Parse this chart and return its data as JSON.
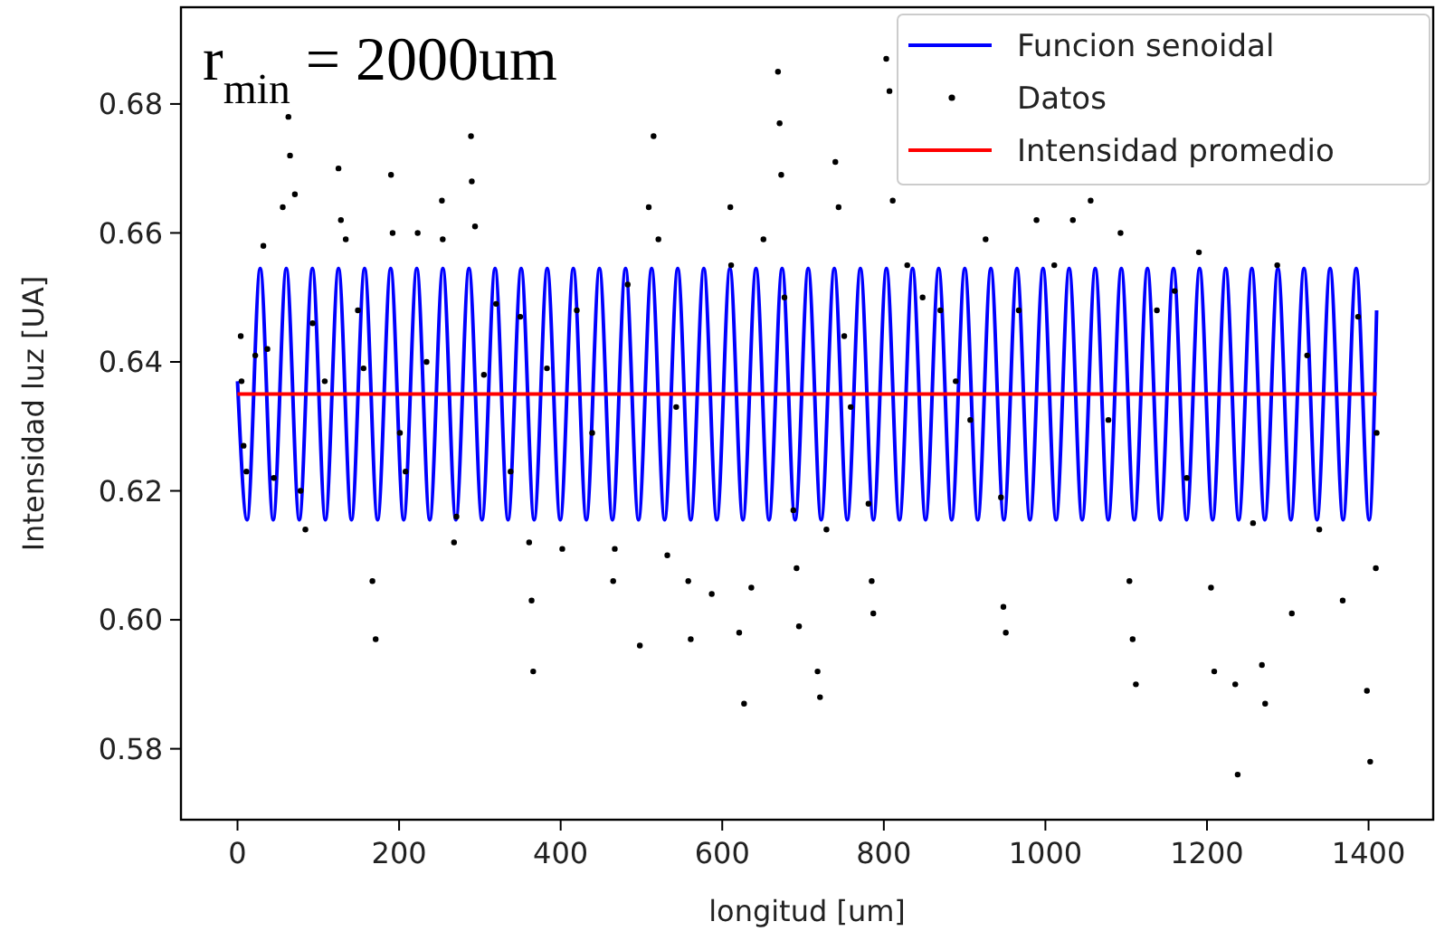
{
  "chart_data": {
    "type": "line",
    "xlabel": "longitud [um]",
    "ylabel": "Intensidad luz [UA]",
    "annotations": [
      "r$_{min}$ = 2000um"
    ],
    "xlim": [
      -70,
      1480
    ],
    "ylim": [
      0.569,
      0.695
    ],
    "xticks": [
      0,
      200,
      400,
      600,
      800,
      1000,
      1200,
      1400
    ],
    "yticks": [
      {
        "value": 0.58,
        "label": "0.58"
      },
      {
        "value": 0.6,
        "label": "0.60"
      },
      {
        "value": 0.62,
        "label": "0.62"
      },
      {
        "value": 0.64,
        "label": "0.64"
      },
      {
        "value": 0.66,
        "label": "0.66"
      },
      {
        "value": 0.68,
        "label": "0.68"
      }
    ],
    "grid": false,
    "legend": "top right",
    "series": [
      {
        "name": "Funcion senoidal",
        "color": "#0000ff",
        "line_style": "solid",
        "x": [
          0,
          11.9,
          28.1,
          44.2,
          60.4,
          76.5,
          92.7,
          108.8,
          125.0,
          141.1,
          157.3,
          173.4,
          189.6,
          205.7,
          221.9,
          238.0,
          254.2,
          270.3,
          286.5,
          302.6,
          318.8,
          334.9,
          351.1,
          367.2,
          383.4,
          399.5,
          415.7,
          431.8,
          448.0,
          464.1,
          480.3,
          496.4,
          512.6,
          528.7,
          544.9,
          561.0,
          577.2,
          593.3,
          609.5,
          625.6,
          641.8,
          657.9,
          674.1,
          690.2,
          706.4,
          722.5,
          738.7,
          754.8,
          771.0,
          787.1,
          803.3,
          819.4,
          835.6,
          851.7,
          867.9,
          884.0,
          900.2,
          916.3,
          932.5,
          948.6,
          964.8,
          980.9,
          997.1,
          1013.2,
          1029.4,
          1045.5,
          1061.7,
          1077.8,
          1094.0,
          1110.1,
          1126.3,
          1142.4,
          1158.6,
          1174.7,
          1190.9,
          1207.0,
          1223.2,
          1239.3,
          1255.5,
          1271.6,
          1287.8,
          1303.9,
          1320.1,
          1336.2,
          1352.4,
          1368.5,
          1384.7,
          1400.8,
          1410
        ],
        "values": [
          0.637,
          0.6155,
          0.6545,
          0.6155,
          0.6545,
          0.6155,
          0.6545,
          0.6155,
          0.6545,
          0.6155,
          0.6545,
          0.6155,
          0.6545,
          0.6155,
          0.6545,
          0.6155,
          0.6545,
          0.6155,
          0.6545,
          0.6155,
          0.6545,
          0.6155,
          0.6545,
          0.6155,
          0.6545,
          0.6155,
          0.6545,
          0.6155,
          0.6545,
          0.6155,
          0.6545,
          0.6155,
          0.6545,
          0.6155,
          0.6545,
          0.6155,
          0.6545,
          0.6155,
          0.6545,
          0.6155,
          0.6545,
          0.6155,
          0.6545,
          0.6155,
          0.6545,
          0.6155,
          0.6545,
          0.6155,
          0.6545,
          0.6155,
          0.6545,
          0.6155,
          0.6545,
          0.6155,
          0.6545,
          0.6155,
          0.6545,
          0.6155,
          0.6545,
          0.6155,
          0.6545,
          0.6155,
          0.6545,
          0.6155,
          0.6545,
          0.6155,
          0.6545,
          0.6155,
          0.6545,
          0.6155,
          0.6545,
          0.6155,
          0.6545,
          0.6155,
          0.6545,
          0.6155,
          0.6545,
          0.6155,
          0.6545,
          0.6155,
          0.6545,
          0.6155,
          0.6545,
          0.6155,
          0.6545,
          0.6155,
          0.6545,
          0.6155,
          0.648
        ]
      },
      {
        "name": "Datos",
        "type": "scatter",
        "color": "#000000",
        "marker": "circle",
        "x": [
          4,
          5,
          7.5,
          11,
          22,
          32,
          37,
          45,
          56,
          63,
          65,
          71,
          78,
          84,
          93,
          108,
          125,
          128,
          134,
          149,
          156,
          167,
          171,
          190,
          192,
          201,
          208,
          223,
          234,
          253,
          254,
          268,
          271,
          289,
          290,
          294,
          305,
          320,
          338,
          350,
          361,
          364,
          366,
          383,
          402,
          420,
          439,
          465,
          467,
          483,
          498,
          509,
          515,
          521,
          532,
          543,
          558,
          561,
          587,
          610,
          611,
          621,
          627,
          636,
          651,
          669,
          671,
          673,
          677,
          688,
          692,
          695,
          718,
          721,
          729,
          740,
          744,
          751,
          759,
          781,
          785,
          787,
          803,
          807,
          811,
          829,
          848,
          870,
          889,
          907,
          926,
          945,
          948,
          951,
          967,
          989,
          1011,
          1034,
          1056,
          1078,
          1093,
          1104,
          1108,
          1112,
          1138,
          1160,
          1175,
          1190,
          1205,
          1209,
          1235,
          1238,
          1257,
          1268,
          1272,
          1287,
          1305,
          1324,
          1339,
          1368,
          1387,
          1398,
          1402,
          1409,
          1410
        ],
        "values": [
          0.644,
          0.637,
          0.627,
          0.623,
          0.641,
          0.658,
          0.642,
          0.622,
          0.664,
          0.678,
          0.672,
          0.666,
          0.62,
          0.614,
          0.646,
          0.637,
          0.67,
          0.662,
          0.659,
          0.648,
          0.639,
          0.606,
          0.597,
          0.669,
          0.66,
          0.629,
          0.623,
          0.66,
          0.64,
          0.665,
          0.659,
          0.612,
          0.616,
          0.675,
          0.668,
          0.661,
          0.638,
          0.649,
          0.623,
          0.647,
          0.612,
          0.603,
          0.592,
          0.639,
          0.611,
          0.648,
          0.629,
          0.606,
          0.611,
          0.652,
          0.596,
          0.664,
          0.675,
          0.659,
          0.61,
          0.633,
          0.606,
          0.597,
          0.604,
          0.664,
          0.655,
          0.598,
          0.587,
          0.605,
          0.659,
          0.685,
          0.677,
          0.669,
          0.65,
          0.617,
          0.608,
          0.599,
          0.592,
          0.588,
          0.614,
          0.671,
          0.664,
          0.644,
          0.633,
          0.618,
          0.606,
          0.601,
          0.687,
          0.682,
          0.665,
          0.655,
          0.65,
          0.648,
          0.637,
          0.631,
          0.659,
          0.619,
          0.602,
          0.598,
          0.648,
          0.662,
          0.655,
          0.662,
          0.665,
          0.631,
          0.66,
          0.606,
          0.597,
          0.59,
          0.648,
          0.651,
          0.622,
          0.657,
          0.605,
          0.592,
          0.59,
          0.576,
          0.615,
          0.593,
          0.587,
          0.655,
          0.601,
          0.641,
          0.614,
          0.603,
          0.647,
          0.589,
          0.578,
          0.608,
          0.629
        ]
      },
      {
        "name": "Intensidad promedio",
        "color": "#ff0000",
        "line_style": "solid",
        "x": [
          0,
          1410
        ],
        "values": [
          0.635,
          0.635
        ]
      }
    ]
  }
}
